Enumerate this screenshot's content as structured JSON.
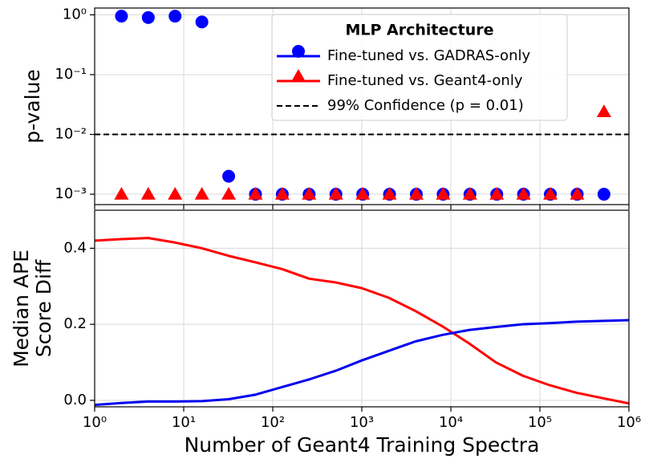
{
  "chart_data": [
    {
      "type": "scatter",
      "y_label": "p-value",
      "log_x": true,
      "log_y": true,
      "grid": true,
      "xlim": [
        1,
        1000000
      ],
      "xticks": [
        1,
        10,
        100,
        1000,
        10000,
        100000,
        1000000
      ],
      "ylim": [
        0.00067,
        1.3
      ],
      "yticks": [
        {
          "value": 1,
          "label": "10⁰"
        },
        {
          "value": 0.1,
          "label": "10⁻¹"
        },
        {
          "value": 0.01,
          "label": "10⁻²"
        },
        {
          "value": 0.001,
          "label": "10⁻³"
        }
      ],
      "legend_title": "MLP Architecture",
      "legend": "upper right",
      "x": [
        2,
        4,
        8,
        16,
        32,
        64,
        128,
        256,
        512,
        1024,
        2048,
        4096,
        8192,
        16384,
        32768,
        65536,
        131072,
        262144,
        524288
      ],
      "series": [
        {
          "name": "Fine-tuned vs. GADRAS-only",
          "color": "#0000ff",
          "marker": "circle",
          "values": [
            0.95,
            0.9,
            0.95,
            0.76,
            0.002,
            0.001,
            0.001,
            0.001,
            0.001,
            0.001,
            0.001,
            0.001,
            0.001,
            0.001,
            0.001,
            0.001,
            0.001,
            0.001,
            0.001
          ]
        },
        {
          "name": "Fine-tuned vs. Geant4-only",
          "color": "#ff0000",
          "marker": "triangle",
          "values": [
            0.001,
            0.001,
            0.001,
            0.001,
            0.001,
            0.001,
            0.001,
            0.001,
            0.001,
            0.001,
            0.001,
            0.001,
            0.001,
            0.001,
            0.001,
            0.001,
            0.001,
            0.001,
            0.024
          ]
        }
      ],
      "reference_line": {
        "value": 0.01,
        "label": "99% Confidence (p = 0.01)",
        "color": "#000000"
      }
    },
    {
      "type": "line",
      "y_label": [
        "Median APE",
        "Score Diff"
      ],
      "x_label": "Number of Geant4 Training Spectra",
      "log_x": true,
      "grid": true,
      "xlim": [
        1,
        1000000
      ],
      "xticks": [
        {
          "value": 1,
          "label": "10⁰"
        },
        {
          "value": 10,
          "label": "10¹"
        },
        {
          "value": 100,
          "label": "10²"
        },
        {
          "value": 1000,
          "label": "10³"
        },
        {
          "value": 10000,
          "label": "10⁴"
        },
        {
          "value": 100000,
          "label": "10⁵"
        },
        {
          "value": 1000000,
          "label": "10⁶"
        }
      ],
      "ylim": [
        -0.017,
        0.5
      ],
      "yticks": [
        {
          "value": 0,
          "label": "0.0"
        },
        {
          "value": 0.2,
          "label": "0.2"
        },
        {
          "value": 0.4,
          "label": "0.4"
        }
      ],
      "x": [
        1,
        2,
        4,
        8,
        16,
        32,
        64,
        128,
        256,
        512,
        1000,
        2000,
        4000,
        8000,
        16000,
        32000,
        64000,
        128000,
        256000,
        524288,
        1000000
      ],
      "series": [
        {
          "color": "#ff0000",
          "values": [
            0.42,
            0.424,
            0.427,
            0.415,
            0.4,
            0.38,
            0.363,
            0.345,
            0.32,
            0.31,
            0.295,
            0.27,
            0.235,
            0.195,
            0.15,
            0.1,
            0.065,
            0.04,
            0.02,
            0.005,
            -0.008
          ]
        },
        {
          "color": "#0000ee",
          "values": [
            -0.012,
            -0.007,
            -0.003,
            -0.003,
            -0.002,
            0.003,
            0.015,
            0.035,
            0.055,
            0.078,
            0.105,
            0.13,
            0.155,
            0.172,
            0.185,
            0.193,
            0.2,
            0.203,
            0.207,
            0.209,
            0.211
          ]
        }
      ]
    }
  ]
}
